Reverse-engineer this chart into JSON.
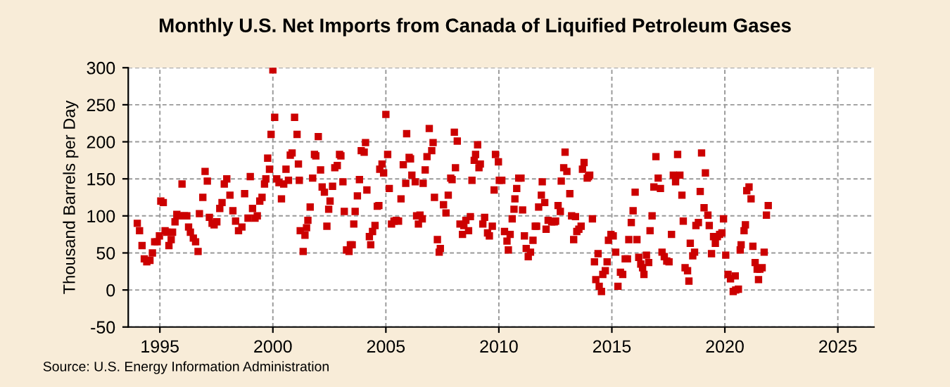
{
  "chart_data": {
    "type": "scatter",
    "title": "Monthly U.S. Net Imports from Canada of Liquified Petroleum Gases",
    "ylabel": "Thousand Barrels per Day",
    "annotations": [
      "Source: U.S. Energy Information Administration"
    ],
    "xlim": [
      1993.6,
      2026.6
    ],
    "xticks": [
      1995,
      2000,
      2005,
      2010,
      2015,
      2020,
      2025
    ],
    "ylim": [
      -50,
      300
    ],
    "yticks": [
      -50,
      0,
      50,
      100,
      150,
      200,
      250,
      300
    ],
    "grid": true,
    "marker": "square",
    "legend": false,
    "series": [
      {
        "color": "#cc0000",
        "x": [
          1994.0,
          1994.1,
          1994.21,
          1994.31,
          1994.42,
          1994.56,
          1994.67,
          1994.77,
          1994.88,
          1994.98,
          1995.04,
          1995.15,
          1995.23,
          1995.31,
          1995.4,
          1995.5,
          1995.56,
          1995.67,
          1995.75,
          1995.88,
          1995.98,
          1996.08,
          1996.19,
          1996.27,
          1996.35,
          1996.48,
          1996.58,
          1996.69,
          1996.75,
          1996.9,
          1997.0,
          1997.1,
          1997.19,
          1997.31,
          1997.4,
          1997.52,
          1997.65,
          1997.75,
          1997.85,
          1997.96,
          1998.1,
          1998.23,
          1998.35,
          1998.48,
          1998.63,
          1998.75,
          1998.9,
          1999.0,
          1999.1,
          1999.21,
          1999.31,
          1999.42,
          1999.52,
          1999.63,
          1999.69,
          1999.77,
          1999.85,
          1999.92,
          2000.0,
          2000.08,
          2000.17,
          2000.27,
          2000.38,
          2000.48,
          2000.58,
          2000.69,
          2000.77,
          2000.85,
          2000.96,
          2001.07,
          2001.13,
          2001.17,
          2001.21,
          2001.34,
          2001.42,
          2001.49,
          2001.55,
          2001.65,
          2001.76,
          2001.84,
          2001.9,
          2002.01,
          2002.11,
          2002.18,
          2002.28,
          2002.39,
          2002.47,
          2002.53,
          2002.64,
          2002.74,
          2002.85,
          2002.95,
          2003.01,
          2003.1,
          2003.16,
          2003.26,
          2003.37,
          2003.43,
          2003.51,
          2003.58,
          2003.64,
          2003.74,
          2003.83,
          2003.91,
          2004.04,
          2004.1,
          2004.16,
          2004.27,
          2004.33,
          2004.41,
          2004.52,
          2004.62,
          2004.69,
          2004.73,
          2004.83,
          2004.9,
          2005.0,
          2005.08,
          2005.15,
          2005.25,
          2005.36,
          2005.46,
          2005.56,
          2005.67,
          2005.77,
          2005.88,
          2005.92,
          2006.03,
          2006.09,
          2006.15,
          2006.3,
          2006.36,
          2006.44,
          2006.51,
          2006.61,
          2006.65,
          2006.74,
          2006.82,
          2006.92,
          2007.03,
          2007.09,
          2007.15,
          2007.28,
          2007.36,
          2007.41,
          2007.55,
          2007.66,
          2007.76,
          2007.87,
          2007.93,
          2008.03,
          2008.08,
          2008.16,
          2008.28,
          2008.39,
          2008.45,
          2008.54,
          2008.66,
          2008.74,
          2008.81,
          2008.91,
          2008.97,
          2009.06,
          2009.12,
          2009.18,
          2009.29,
          2009.37,
          2009.5,
          2009.58,
          2009.71,
          2009.79,
          2009.85,
          2009.98,
          2010.02,
          2010.13,
          2010.25,
          2010.36,
          2010.42,
          2010.5,
          2010.59,
          2010.67,
          2010.71,
          2010.79,
          2010.88,
          2010.98,
          2011.05,
          2011.13,
          2011.21,
          2011.3,
          2011.4,
          2011.51,
          2011.61,
          2011.67,
          2011.76,
          2011.88,
          2011.92,
          2012.03,
          2012.09,
          2012.18,
          2012.34,
          2012.45,
          2012.51,
          2012.62,
          2012.72,
          2012.76,
          2012.87,
          2012.93,
          2013.01,
          2013.14,
          2013.22,
          2013.31,
          2013.39,
          2013.45,
          2013.54,
          2013.64,
          2013.7,
          2013.77,
          2013.91,
          2013.97,
          2014.02,
          2014.14,
          2014.23,
          2014.29,
          2014.39,
          2014.44,
          2014.54,
          2014.6,
          2014.71,
          2014.79,
          2014.85,
          2014.96,
          2015.06,
          2015.17,
          2015.27,
          2015.38,
          2015.48,
          2015.59,
          2015.69,
          2015.75,
          2015.86,
          2015.94,
          2016.03,
          2016.11,
          2016.19,
          2016.28,
          2016.36,
          2016.42,
          2016.53,
          2016.63,
          2016.69,
          2016.78,
          2016.86,
          2016.95,
          2017.05,
          2017.15,
          2017.22,
          2017.32,
          2017.43,
          2017.53,
          2017.64,
          2017.72,
          2017.82,
          2017.91,
          2018.01,
          2018.1,
          2018.16,
          2018.24,
          2018.35,
          2018.41,
          2018.47,
          2018.58,
          2018.66,
          2018.72,
          2018.83,
          2018.91,
          2018.97,
          2019.08,
          2019.14,
          2019.25,
          2019.31,
          2019.41,
          2019.5,
          2019.58,
          2019.67,
          2019.77,
          2019.87,
          2019.94,
          2020.04,
          2020.14,
          2020.25,
          2020.37,
          2020.46,
          2020.48,
          2020.6,
          2020.68,
          2020.72,
          2020.85,
          2020.91,
          2020.97,
          2021.07,
          2021.16,
          2021.24,
          2021.34,
          2021.43,
          2021.49,
          2021.55,
          2021.65,
          2021.74,
          2021.84,
          2021.92
        ],
        "values": [
          90,
          80,
          60,
          42,
          38,
          40,
          50,
          65,
          65,
          73,
          120,
          118,
          80,
          78,
          60,
          68,
          78,
          92,
          102,
          100,
          143,
          100,
          100,
          85,
          78,
          70,
          65,
          52,
          103,
          125,
          160,
          147,
          98,
          90,
          88,
          92,
          110,
          118,
          143,
          150,
          128,
          107,
          93,
          80,
          85,
          130,
          97,
          153,
          110,
          97,
          100,
          120,
          125,
          143,
          150,
          178,
          163,
          210,
          297,
          233,
          150,
          145,
          123,
          143,
          163,
          148,
          182,
          185,
          233,
          210,
          170,
          148,
          80,
          52,
          74,
          84,
          94,
          112,
          151,
          183,
          181,
          207,
          162,
          139,
          132,
          86,
          109,
          120,
          140,
          165,
          168,
          183,
          181,
          146,
          106,
          54,
          52,
          61,
          61,
          89,
          106,
          127,
          149,
          188,
          186,
          199,
          135,
          72,
          61,
          79,
          87,
          113,
          114,
          163,
          170,
          158,
          237,
          183,
          137,
          89,
          93,
          94,
          93,
          123,
          169,
          144,
          211,
          179,
          177,
          155,
          146,
          100,
          89,
          101,
          96,
          144,
          162,
          180,
          218,
          188,
          199,
          125,
          68,
          51,
          56,
          115,
          104,
          128,
          151,
          149,
          213,
          165,
          201,
          89,
          75,
          87,
          94,
          80,
          99,
          148,
          175,
          183,
          196,
          165,
          170,
          89,
          98,
          77,
          73,
          86,
          135,
          183,
          173,
          148,
          148,
          79,
          66,
          54,
          75,
          96,
          109,
          123,
          137,
          151,
          151,
          108,
          73,
          56,
          45,
          51,
          67,
          86,
          86,
          112,
          128,
          146,
          118,
          82,
          94,
          92,
          92,
          93,
          114,
          106,
          147,
          165,
          186,
          160,
          130,
          100,
          68,
          99,
          79,
          82,
          86,
          163,
          172,
          151,
          153,
          155,
          96,
          38,
          14,
          49,
          5,
          -2,
          21,
          26,
          38,
          67,
          75,
          73,
          51,
          5,
          24,
          21,
          42,
          42,
          68,
          91,
          107,
          132,
          68,
          44,
          35,
          30,
          21,
          47,
          37,
          80,
          100,
          139,
          180,
          151,
          137,
          51,
          45,
          39,
          38,
          75,
          155,
          146,
          183,
          155,
          128,
          93,
          30,
          26,
          12,
          63,
          46,
          51,
          87,
          91,
          133,
          185,
          111,
          158,
          101,
          87,
          49,
          72,
          63,
          72,
          75,
          77,
          96,
          47,
          21,
          15,
          -2,
          19,
          0,
          1,
          54,
          61,
          80,
          88,
          134,
          139,
          123,
          59,
          37,
          28,
          14,
          28,
          30,
          51,
          101,
          114
        ]
      }
    ]
  }
}
